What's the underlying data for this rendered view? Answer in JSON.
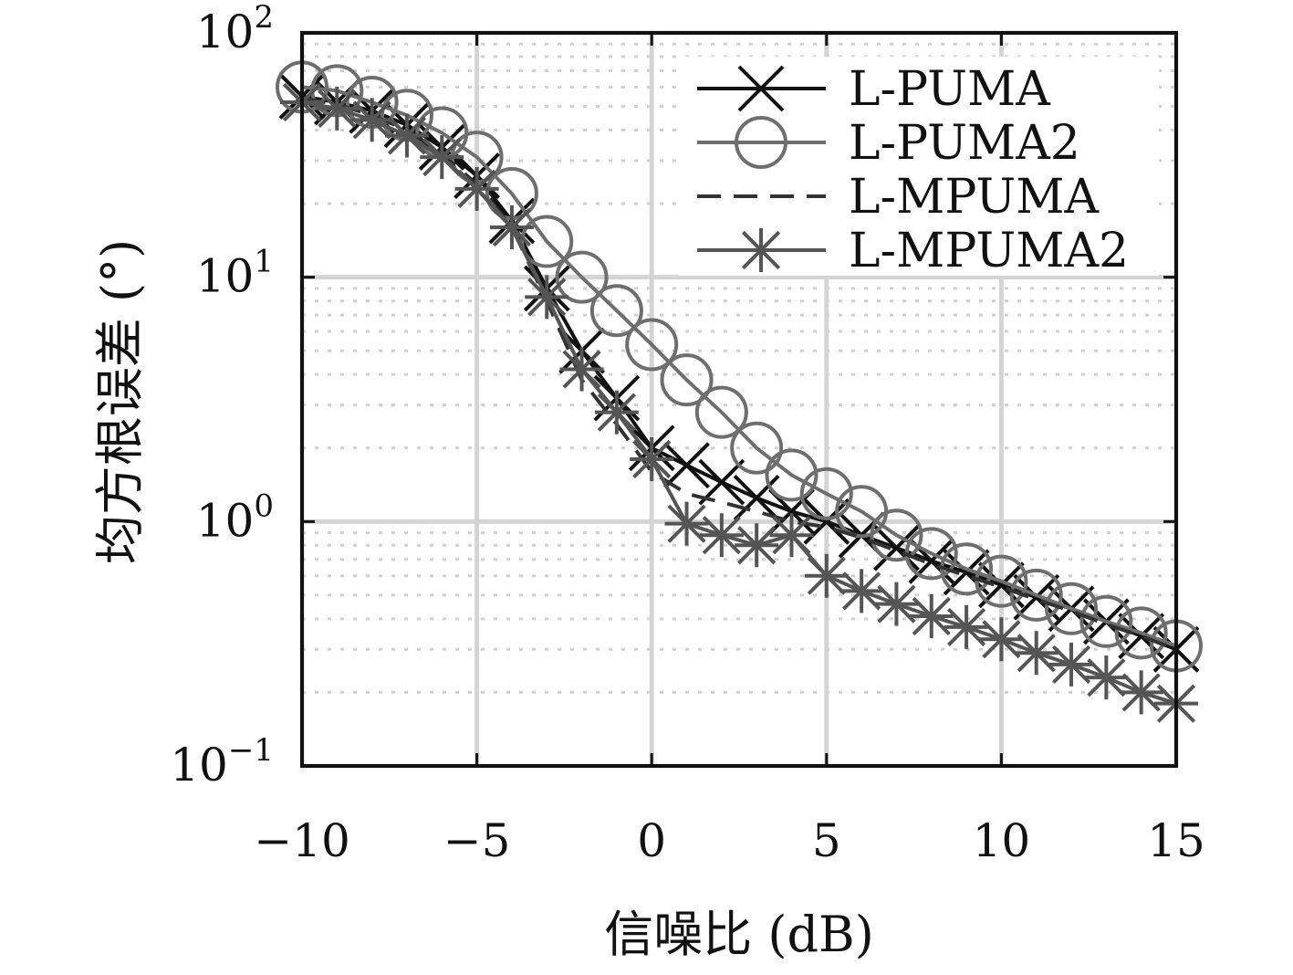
{
  "chart_data": {
    "type": "line",
    "xlabel": "信噪比 (dB)",
    "ylabel": "均方根误差 (°)",
    "x_scale": "linear",
    "y_scale": "log",
    "xlim": [
      -10,
      15
    ],
    "ylim": [
      0.1,
      100
    ],
    "x_ticks": [
      -10,
      -5,
      0,
      5,
      10,
      15
    ],
    "x_tick_labels": [
      "−10",
      "−5",
      "0",
      "5",
      "10",
      "15"
    ],
    "y_ticks": [
      0.1,
      1,
      10,
      100
    ],
    "y_tick_labels": [
      {
        "base": "10",
        "exp": "−1"
      },
      {
        "base": "10",
        "exp": "0"
      },
      {
        "base": "10",
        "exp": "1"
      },
      {
        "base": "10",
        "exp": "2"
      }
    ],
    "grid": true,
    "legend_position": "top-right",
    "x": [
      -10,
      -9,
      -8,
      -7,
      -6,
      -5,
      -4,
      -3,
      -2,
      -1,
      0,
      1,
      2,
      3,
      4,
      5,
      6,
      7,
      8,
      9,
      10,
      11,
      12,
      13,
      14,
      15
    ],
    "series": [
      {
        "name": "L-PUMA",
        "color": "#111111",
        "marker": "x",
        "line_style": "solid",
        "values": [
          55,
          52,
          48,
          42,
          34,
          26,
          17,
          9.0,
          5.0,
          3.2,
          2.0,
          1.7,
          1.45,
          1.25,
          1.1,
          1.0,
          0.88,
          0.78,
          0.69,
          0.62,
          0.55,
          0.49,
          0.44,
          0.39,
          0.34,
          0.3
        ]
      },
      {
        "name": "L-PUMA2",
        "color": "#6e6e6e",
        "marker": "circle",
        "line_style": "solid",
        "values": [
          60,
          58,
          52,
          46,
          39,
          31,
          22,
          14,
          10,
          7.3,
          5.3,
          3.8,
          2.8,
          2.0,
          1.55,
          1.3,
          1.1,
          0.88,
          0.74,
          0.64,
          0.57,
          0.5,
          0.44,
          0.39,
          0.35,
          0.31
        ]
      },
      {
        "name": "L-MPUMA",
        "color": "#333333",
        "marker": "none",
        "line_style": "dashed",
        "values": [
          54,
          51,
          46,
          40,
          32,
          24,
          16,
          8.0,
          3.8,
          2.5,
          1.6,
          1.3,
          1.2,
          1.1,
          1.0,
          0.95,
          0.86,
          0.76,
          0.67,
          0.6,
          0.54,
          0.48,
          0.43,
          0.38,
          0.34,
          0.3
        ]
      },
      {
        "name": "L-MPUMA2",
        "color": "#555555",
        "marker": "star",
        "line_style": "solid",
        "values": [
          52,
          49,
          44,
          38,
          31,
          23,
          16,
          8.3,
          4.2,
          2.8,
          1.8,
          0.98,
          0.88,
          0.8,
          0.88,
          0.6,
          0.52,
          0.46,
          0.41,
          0.37,
          0.33,
          0.29,
          0.26,
          0.23,
          0.2,
          0.18
        ]
      }
    ]
  }
}
